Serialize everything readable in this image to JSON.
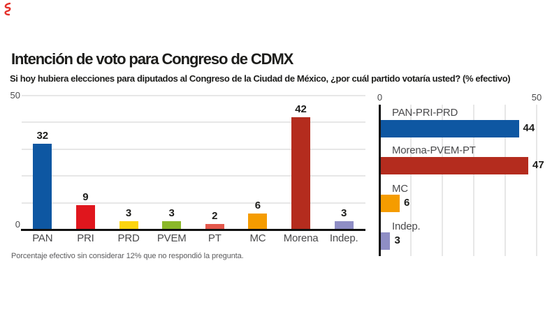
{
  "annotation": {
    "note": "small red pen scribble in extreme top-left corner",
    "color": "#e5312b"
  },
  "header": {
    "title": "Intención de voto para Congreso de CDMX",
    "subtitle": "Si hoy hubiera elecciones para diputados al Congreso de la Ciudad de México, ¿por cuál partido votaría usted? (% efectivo)"
  },
  "footnote": "Porcentaje efectivo sin considerar 12% que no respondió la pregunta.",
  "colors": {
    "pan_blue": "#0e57a2",
    "pri_red": "#e0161d",
    "prd_yellow": "#fcd40e",
    "pvem_green": "#8bb829",
    "pt_salmon": "#e4584c",
    "mc_orange": "#f59c00",
    "morena_brick": "#b42c1e",
    "indep_purple": "#8f8ec5",
    "gridline": "#e7e7e7",
    "axis": "#111111",
    "label_gray": "#4a4a4c"
  },
  "chart_data": [
    {
      "type": "bar",
      "orientation": "vertical",
      "title": "",
      "categories": [
        "PAN",
        "PRI",
        "PRD",
        "PVEM",
        "PT",
        "MC",
        "Morena",
        "Indep."
      ],
      "values": [
        32,
        9,
        3,
        3,
        2,
        6,
        42,
        3
      ],
      "bar_colors": [
        "#0e57a2",
        "#e0161d",
        "#fcd40e",
        "#8bb829",
        "#e4584c",
        "#f59c00",
        "#b42c1e",
        "#8f8ec5"
      ],
      "ylim": [
        0,
        50
      ],
      "ytick_labels": [
        "0",
        "50"
      ],
      "gridline_interval": 10,
      "grid": "horizontal gridlines on, labels above bars",
      "legend": "none"
    },
    {
      "type": "bar",
      "orientation": "horizontal",
      "title": "",
      "categories": [
        "PAN-PRI-PRD",
        "Morena-PVEM-PT",
        "MC",
        "Indep."
      ],
      "values": [
        44,
        47,
        6,
        3
      ],
      "bar_colors": [
        "#0e57a2",
        "#b42c1e",
        "#f59c00",
        "#8f8ec5"
      ],
      "xlim": [
        0,
        50
      ],
      "xtick_labels": [
        "0",
        "50"
      ],
      "gridline_interval": 10,
      "grid": "vertical gridlines on, value labels right of bars, category labels above bars",
      "legend": "none"
    }
  ]
}
